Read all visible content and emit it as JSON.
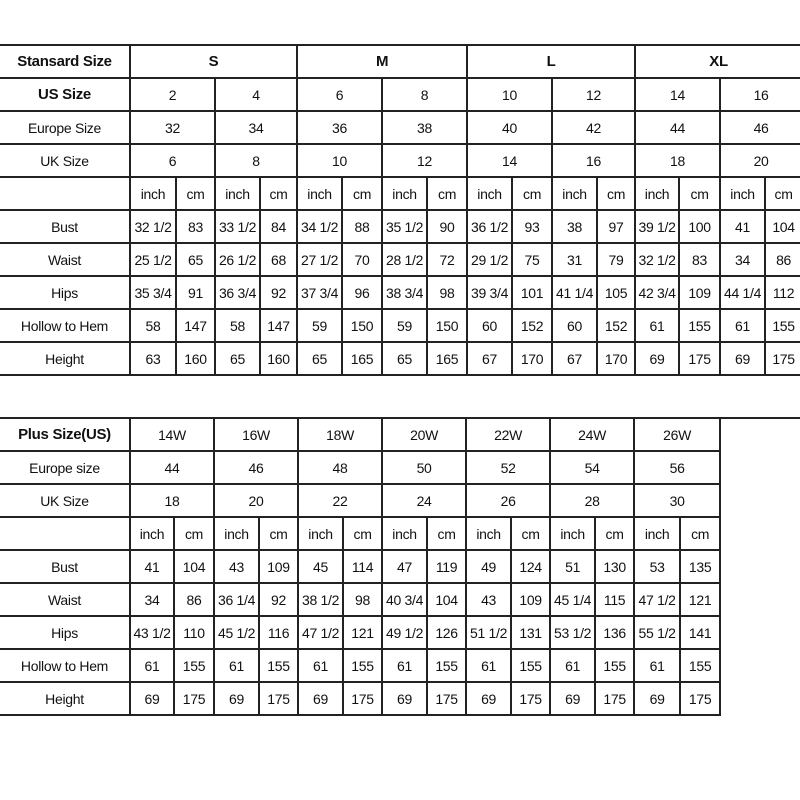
{
  "standard": {
    "header_label": "Stansard Size",
    "groups": [
      "S",
      "M",
      "L",
      "XL"
    ],
    "size_rows": [
      {
        "label": "US Size",
        "bold": true,
        "values": [
          "2",
          "4",
          "6",
          "8",
          "10",
          "12",
          "14",
          "16"
        ]
      },
      {
        "label": "Europe Size",
        "values": [
          "32",
          "34",
          "36",
          "38",
          "40",
          "42",
          "44",
          "46"
        ]
      },
      {
        "label": "UK Size",
        "values": [
          "6",
          "8",
          "10",
          "12",
          "14",
          "16",
          "18",
          "20"
        ]
      }
    ],
    "units": [
      "inch",
      "cm"
    ],
    "measure_rows": [
      {
        "label": "Bust",
        "values": [
          "32 1/2",
          "83",
          "33 1/2",
          "84",
          "34 1/2",
          "88",
          "35 1/2",
          "90",
          "36 1/2",
          "93",
          "38",
          "97",
          "39 1/2",
          "100",
          "41",
          "104"
        ]
      },
      {
        "label": "Waist",
        "values": [
          "25 1/2",
          "65",
          "26 1/2",
          "68",
          "27 1/2",
          "70",
          "28 1/2",
          "72",
          "29 1/2",
          "75",
          "31",
          "79",
          "32 1/2",
          "83",
          "34",
          "86"
        ]
      },
      {
        "label": "Hips",
        "values": [
          "35 3/4",
          "91",
          "36 3/4",
          "92",
          "37 3/4",
          "96",
          "38 3/4",
          "98",
          "39 3/4",
          "101",
          "41 1/4",
          "105",
          "42 3/4",
          "109",
          "44 1/4",
          "112"
        ]
      },
      {
        "label": "Hollow to Hem",
        "values": [
          "58",
          "147",
          "58",
          "147",
          "59",
          "150",
          "59",
          "150",
          "60",
          "152",
          "60",
          "152",
          "61",
          "155",
          "61",
          "155"
        ]
      },
      {
        "label": "Height",
        "values": [
          "63",
          "160",
          "65",
          "160",
          "65",
          "165",
          "65",
          "165",
          "67",
          "170",
          "67",
          "170",
          "69",
          "175",
          "69",
          "175"
        ]
      }
    ]
  },
  "plus": {
    "header_label": "Plus Size(US)",
    "sizes": [
      "14W",
      "16W",
      "18W",
      "20W",
      "22W",
      "24W",
      "26W"
    ],
    "size_rows": [
      {
        "label": "Europe size",
        "values": [
          "44",
          "46",
          "48",
          "50",
          "52",
          "54",
          "56"
        ]
      },
      {
        "label": "UK Size",
        "values": [
          "18",
          "20",
          "22",
          "24",
          "26",
          "28",
          "30"
        ]
      }
    ],
    "units": [
      "inch",
      "cm"
    ],
    "measure_rows": [
      {
        "label": "Bust",
        "values": [
          "41",
          "104",
          "43",
          "109",
          "45",
          "114",
          "47",
          "119",
          "49",
          "124",
          "51",
          "130",
          "53",
          "135"
        ]
      },
      {
        "label": "Waist",
        "values": [
          "34",
          "86",
          "36 1/4",
          "92",
          "38 1/2",
          "98",
          "40 3/4",
          "104",
          "43",
          "109",
          "45 1/4",
          "115",
          "47 1/2",
          "121"
        ]
      },
      {
        "label": "Hips",
        "values": [
          "43 1/2",
          "110",
          "45 1/2",
          "116",
          "47 1/2",
          "121",
          "49 1/2",
          "126",
          "51 1/2",
          "131",
          "53 1/2",
          "136",
          "55 1/2",
          "141"
        ]
      },
      {
        "label": "Hollow to Hem",
        "values": [
          "61",
          "155",
          "61",
          "155",
          "61",
          "155",
          "61",
          "155",
          "61",
          "155",
          "61",
          "155",
          "61",
          "155"
        ]
      },
      {
        "label": "Height",
        "values": [
          "69",
          "175",
          "69",
          "175",
          "69",
          "175",
          "69",
          "175",
          "69",
          "175",
          "69",
          "175",
          "69",
          "175"
        ]
      }
    ]
  }
}
